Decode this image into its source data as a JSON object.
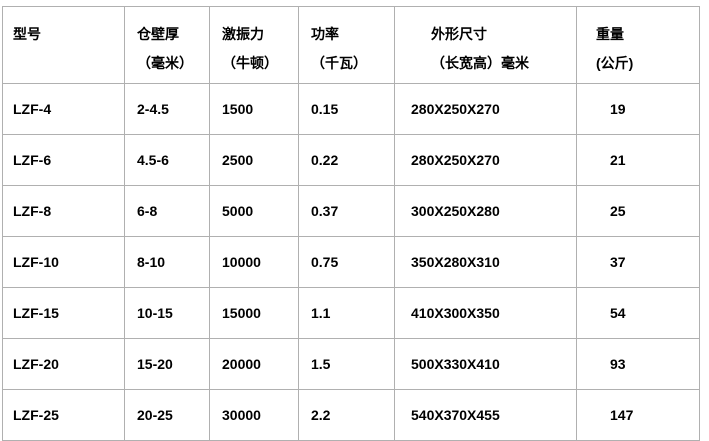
{
  "table": {
    "columns": [
      {
        "label": "型号",
        "sublabel": ""
      },
      {
        "label": "仓壁厚",
        "sublabel": "（毫米）"
      },
      {
        "label": "激振力",
        "sublabel": "（牛顿）"
      },
      {
        "label": "功率",
        "sublabel": "（千瓦）"
      },
      {
        "label": "外形尺寸",
        "sublabel": "（长宽高）毫米"
      },
      {
        "label": "重量",
        "sublabel": "(公斤)"
      }
    ],
    "rows": [
      [
        "LZF-4",
        "2-4.5",
        "1500",
        "0.15",
        "280X250X270",
        "19"
      ],
      [
        "LZF-6",
        "4.5-6",
        "2500",
        "0.22",
        "280X250X270",
        "21"
      ],
      [
        "LZF-8",
        "6-8",
        "5000",
        "0.37",
        "300X250X280",
        "25"
      ],
      [
        "LZF-10",
        "8-10",
        "10000",
        "0.75",
        "350X280X310",
        "37"
      ],
      [
        "LZF-15",
        "10-15",
        "15000",
        "1.1",
        "410X300X350",
        "54"
      ],
      [
        "LZF-20",
        "15-20",
        "20000",
        "1.5",
        "500X330X410",
        "93"
      ],
      [
        "LZF-25",
        "20-25",
        "30000",
        "2.2",
        "540X370X455",
        "147"
      ]
    ]
  },
  "colors": {
    "background": "#ffffff",
    "border": "#b0b0b0",
    "text": "#000000"
  }
}
